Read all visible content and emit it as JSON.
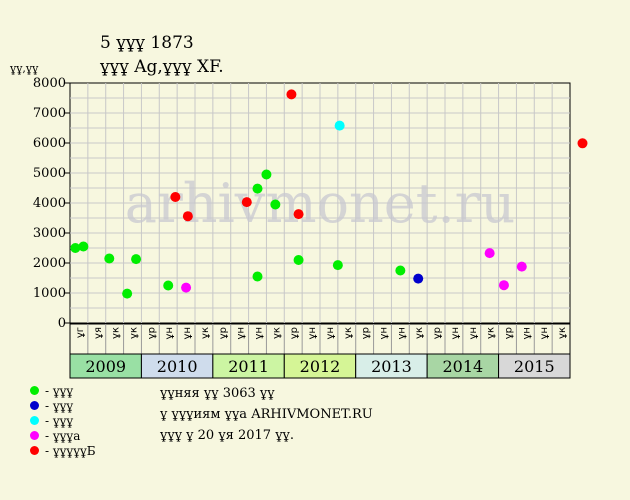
{
  "header": {
    "title": "5 ұұұ 1873",
    "subtitle": "ұұұ Ag,ұұұ XF.",
    "y_unit": "ұұ,ұұ"
  },
  "watermark": "arhivmonet.ru",
  "legend": [
    {
      "label": "- ұұұ",
      "color": "#00ee00"
    },
    {
      "label": "- ұұұ",
      "color": "#0000cc"
    },
    {
      "label": "- ұұұ",
      "color": "#00ffff"
    },
    {
      "label": "- ұұұа",
      "color": "#ff00ff"
    },
    {
      "label": "- ұұұұұБ",
      "color": "#ff0000"
    }
  ],
  "notes": [
    "ұұняя ұұ 3063 ұұ",
    "ұ ұұұиям ұұа ARHIVMONET.RU",
    "ұұұ ұ 20 ұя 2017 ұұ."
  ],
  "chart_data": {
    "type": "scatter",
    "ylim": [
      0,
      8000
    ],
    "yticks": [
      0,
      1000,
      2000,
      3000,
      4000,
      5000,
      6000,
      7000,
      8000
    ],
    "grid": true,
    "month_labels": [
      "ұг",
      "ұя",
      "ұк",
      "ұк",
      "ұр",
      "ұн",
      "ұн",
      "ұк",
      "ұр",
      "ұн",
      "ұн",
      "ұк",
      "ұр",
      "ұн",
      "ұн",
      "ұк",
      "ұр",
      "ұн",
      "ұн",
      "ұк",
      "ұр",
      "ұн",
      "ұн",
      "ұк",
      "ұр",
      "ұн",
      "ұн",
      "ұк"
    ],
    "years": [
      {
        "label": "2009",
        "color": "#99e0a4",
        "span": 4
      },
      {
        "label": "2010",
        "color": "#cfdcec",
        "span": 4
      },
      {
        "label": "2011",
        "color": "#ccf5a3",
        "span": 4
      },
      {
        "label": "2012",
        "color": "#d5f596",
        "span": 4
      },
      {
        "label": "2013",
        "color": "#d8eee8",
        "span": 4
      },
      {
        "label": "2014",
        "color": "#a8d6a4",
        "span": 4
      },
      {
        "label": "2015",
        "color": "#d8d8d8",
        "span": 4
      }
    ],
    "series": [
      {
        "color": "#00ee00",
        "points": [
          [
            0.3,
            2500
          ],
          [
            0.75,
            2550
          ],
          [
            2.2,
            2150
          ],
          [
            3.2,
            980
          ],
          [
            3.7,
            2130
          ],
          [
            5.5,
            1250
          ],
          [
            10.5,
            1550
          ],
          [
            10.5,
            4480
          ],
          [
            11,
            4950
          ],
          [
            11.5,
            3950
          ],
          [
            12.8,
            2100
          ],
          [
            15,
            1930
          ],
          [
            18.5,
            1750
          ]
        ]
      },
      {
        "color": "#0000cc",
        "points": [
          [
            19.5,
            1480
          ]
        ]
      },
      {
        "color": "#00ffff",
        "points": [
          [
            15.1,
            6580
          ]
        ]
      },
      {
        "color": "#ff00ff",
        "points": [
          [
            6.5,
            1180
          ],
          [
            23.5,
            2330
          ],
          [
            24.3,
            1260
          ],
          [
            25.3,
            1880
          ]
        ]
      },
      {
        "color": "#ff0000",
        "points": [
          [
            5.9,
            4200
          ],
          [
            6.6,
            3560
          ],
          [
            9.9,
            4030
          ],
          [
            12.4,
            7620
          ],
          [
            12.8,
            3630
          ],
          [
            28.7,
            5990
          ]
        ]
      }
    ]
  }
}
